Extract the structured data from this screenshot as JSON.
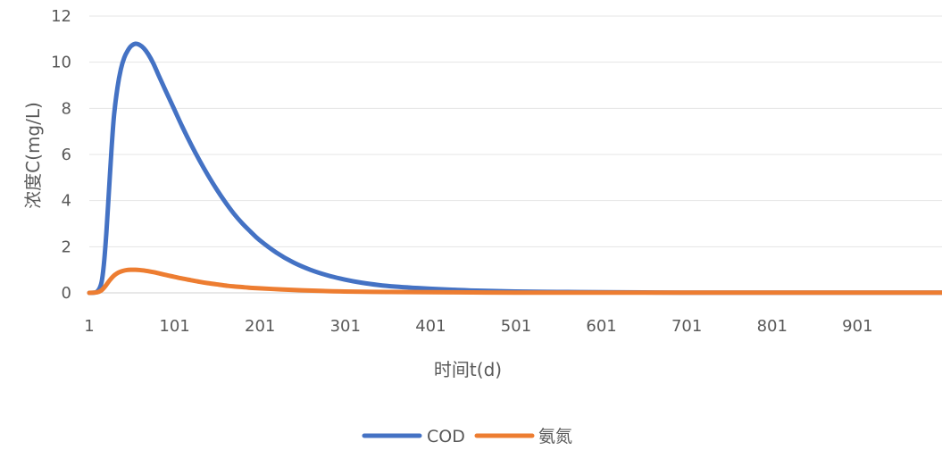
{
  "chart_data": {
    "type": "line",
    "title": "",
    "xlabel": "时间t(d)",
    "ylabel": "浓度C(mg/L)",
    "xlim": [
      1,
      1000
    ],
    "ylim": [
      0,
      12
    ],
    "grid": true,
    "legend_position": "bottom",
    "x_ticks": [
      1,
      101,
      201,
      301,
      401,
      501,
      601,
      701,
      801,
      901
    ],
    "x_tick_labels": [
      "1",
      "101",
      "201",
      "301",
      "401",
      "501",
      "601",
      "701",
      "801",
      "901"
    ],
    "y_ticks": [
      0,
      2,
      4,
      6,
      8,
      10,
      12
    ],
    "y_tick_labels": [
      "0",
      "2",
      "4",
      "6",
      "8",
      "10",
      "12"
    ],
    "series": [
      {
        "name": "COD",
        "color": "#4472C4",
        "x": [
          1,
          10,
          15,
          18,
          21,
          24,
          27,
          30,
          34,
          38,
          42,
          46,
          50,
          55,
          60,
          65,
          70,
          76,
          82,
          90,
          100,
          110,
          120,
          130,
          140,
          150,
          160,
          170,
          180,
          190,
          200,
          220,
          240,
          260,
          280,
          300,
          320,
          340,
          360,
          380,
          400,
          430,
          460,
          500,
          550,
          600,
          650,
          700,
          800,
          900,
          1000
        ],
        "y": [
          0,
          0.05,
          0.4,
          1.2,
          2.6,
          4.4,
          6.2,
          7.7,
          8.9,
          9.7,
          10.2,
          10.5,
          10.7,
          10.8,
          10.75,
          10.6,
          10.35,
          9.95,
          9.45,
          8.8,
          8.0,
          7.2,
          6.45,
          5.75,
          5.1,
          4.5,
          3.95,
          3.45,
          3.02,
          2.65,
          2.3,
          1.75,
          1.32,
          1.0,
          0.76,
          0.58,
          0.44,
          0.34,
          0.27,
          0.22,
          0.18,
          0.13,
          0.09,
          0.06,
          0.04,
          0.03,
          0.02,
          0.01,
          0.01,
          0.01,
          0.01
        ]
      },
      {
        "name": "氨氮",
        "color": "#ED7D31",
        "x": [
          1,
          10,
          15,
          20,
          25,
          30,
          35,
          40,
          45,
          50,
          55,
          60,
          65,
          70,
          80,
          90,
          100,
          110,
          120,
          130,
          140,
          150,
          160,
          170,
          180,
          190,
          200,
          225,
          250,
          275,
          300,
          350,
          400,
          450,
          500,
          600,
          700,
          800,
          900,
          1000
        ],
        "y": [
          0,
          0.02,
          0.1,
          0.3,
          0.55,
          0.75,
          0.88,
          0.95,
          0.99,
          1.0,
          1.0,
          0.99,
          0.97,
          0.94,
          0.87,
          0.78,
          0.7,
          0.62,
          0.55,
          0.48,
          0.42,
          0.37,
          0.32,
          0.28,
          0.25,
          0.22,
          0.2,
          0.15,
          0.11,
          0.08,
          0.06,
          0.04,
          0.03,
          0.02,
          0.01,
          0.01,
          0.01,
          0.01,
          0.01,
          0.01
        ]
      }
    ]
  }
}
